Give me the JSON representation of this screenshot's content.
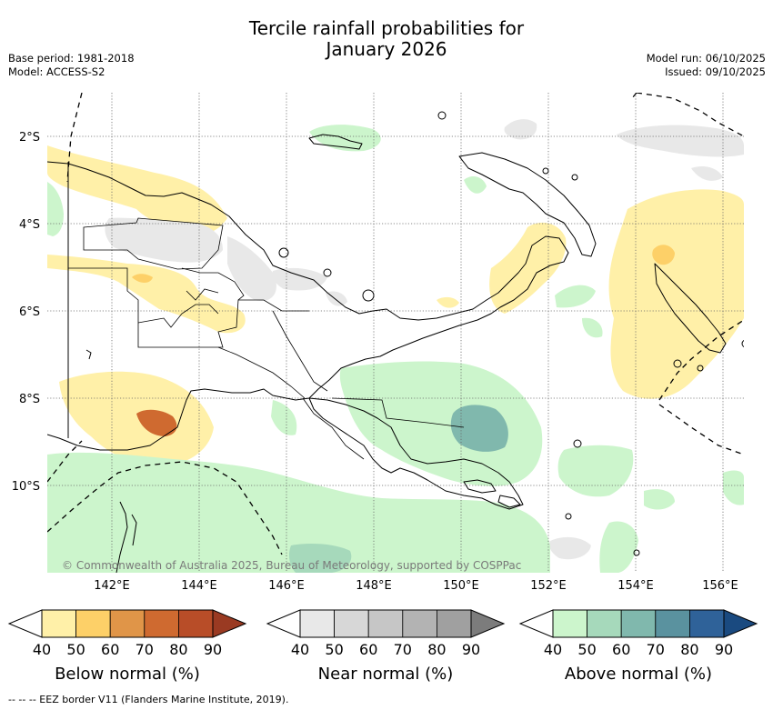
{
  "title_line1": "Tercile rainfall probabilities for",
  "title_line2": "January 2026",
  "meta_left": {
    "base_period": "Base period: 1981-2018",
    "model": "Model: ACCESS-S2"
  },
  "meta_right": {
    "model_run": "Model run: 06/10/2025",
    "issued": "Issued: 09/10/2025"
  },
  "map": {
    "lat_labels": [
      "2°S",
      "4°S",
      "6°S",
      "8°S",
      "10°S"
    ],
    "lon_labels": [
      "142°E",
      "144°E",
      "146°E",
      "148°E",
      "150°E",
      "152°E",
      "154°E",
      "156°E"
    ],
    "copyright": "© Commonwealth of Australia 2025, Bureau of Meteorology, supported by COSPPac"
  },
  "colorbars": [
    {
      "title": "Below normal (%)",
      "ticks": [
        "40",
        "50",
        "60",
        "70",
        "80",
        "90"
      ],
      "colors": [
        "#fff0a8",
        "#fdd068",
        "#e09548",
        "#cf6a30",
        "#b84d28",
        "#9a3a22"
      ]
    },
    {
      "title": "Near normal (%)",
      "ticks": [
        "40",
        "50",
        "60",
        "70",
        "80",
        "90"
      ],
      "colors": [
        "#e8e8e8",
        "#d7d7d7",
        "#c6c6c6",
        "#b3b3b3",
        "#a0a0a0",
        "#7c7c7c"
      ]
    },
    {
      "title": "Above normal (%)",
      "ticks": [
        "40",
        "50",
        "60",
        "70",
        "80",
        "90"
      ],
      "colors": [
        "#ccf5cc",
        "#a6d9bb",
        "#80b8ad",
        "#5a929f",
        "#2f6299",
        "#1a4a80"
      ]
    }
  ],
  "footnote": "-- -- -- EEZ border V11 (Flanders Marine Institute, 2019).",
  "colors": {
    "below_40": "#fff0a8",
    "below_50": "#fdd068",
    "below_70": "#cf6a30",
    "near_40": "#e8e8e8",
    "above_40": "#ccf5cc",
    "above_60": "#80b8ad"
  }
}
